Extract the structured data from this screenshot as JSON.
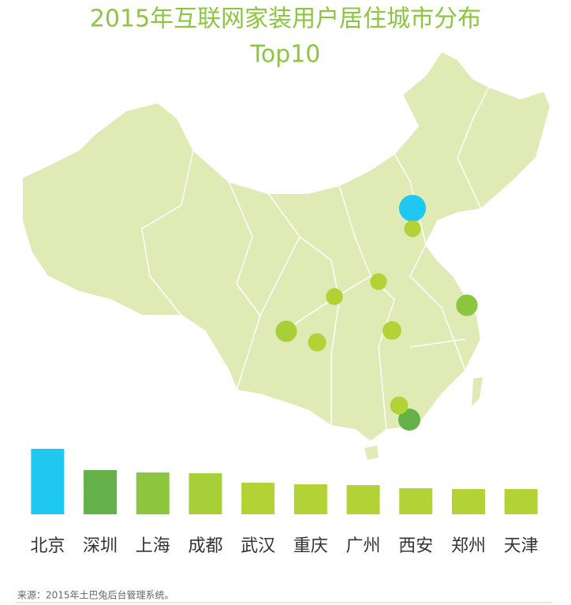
{
  "chart_data": {
    "type": "bar",
    "title": "2015年互联网家装用户居住城市分布",
    "subtitle": "Top10",
    "categories": [
      "北京",
      "深圳",
      "上海",
      "成都",
      "武汉",
      "重庆",
      "广州",
      "西安",
      "郑州",
      "天津"
    ],
    "values": [
      83,
      56,
      53,
      52,
      40,
      38,
      37,
      33,
      32,
      32
    ],
    "colors": [
      "#1ec8f0",
      "#66b04a",
      "#8cc63f",
      "#a8cf38",
      "#b2d235",
      "#b2d235",
      "#b2d235",
      "#b2d235",
      "#b2d235",
      "#b2d235"
    ],
    "source": "来源：2015年土巴兔后台管理系统。"
  }
}
